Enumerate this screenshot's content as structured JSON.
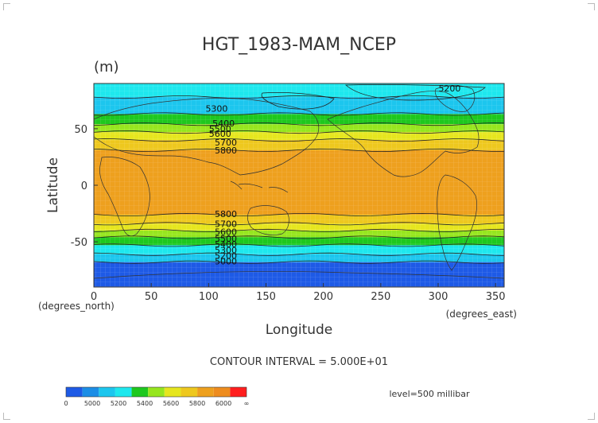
{
  "chart_data": {
    "type": "heatmap",
    "title": "HGT_1983-MAM_NCEP",
    "units": "(m)",
    "xlabel": "Longitude",
    "ylabel": "Latitude",
    "x_unit_note": "(degrees_east)",
    "y_unit_note": "(degrees_north)",
    "xlim": [
      0,
      357.5
    ],
    "ylim": [
      -90,
      90
    ],
    "x_ticks": [
      0,
      50,
      100,
      150,
      200,
      250,
      300,
      350
    ],
    "y_ticks": [
      50,
      0,
      -50
    ],
    "contour_interval_text": "CONTOUR INTERVAL = 5.000E+01",
    "level_text": "level=500 millibar",
    "colorbar": {
      "ticks": [
        "0",
        "5000",
        "5200",
        "5400",
        "5600",
        "5800",
        "6000",
        "∞"
      ],
      "colors": [
        "#1e5ae6",
        "#1c8ee6",
        "#1cc6ee",
        "#1ee8ee",
        "#1ec81e",
        "#96e61e",
        "#e6e61e",
        "#eec81e",
        "#eea01e",
        "#ee8c1e",
        "#ff1e1e"
      ]
    },
    "latitude_bands": [
      {
        "lat_from": 90,
        "lat_to": 78,
        "value": 5300,
        "color": "#1ee8ee"
      },
      {
        "lat_from": 78,
        "lat_to": 63,
        "value": 5300,
        "color": "#1cc6ee"
      },
      {
        "lat_from": 63,
        "lat_to": 54,
        "value": 5450,
        "color": "#1ec81e"
      },
      {
        "lat_from": 54,
        "lat_to": 47,
        "value": 5550,
        "color": "#96e61e"
      },
      {
        "lat_from": 47,
        "lat_to": 40,
        "value": 5650,
        "color": "#e6e61e"
      },
      {
        "lat_from": 40,
        "lat_to": 31,
        "value": 5750,
        "color": "#eec81e"
      },
      {
        "lat_from": 31,
        "lat_to": -26,
        "value": 5850,
        "color": "#eea01e"
      },
      {
        "lat_from": -26,
        "lat_to": -34,
        "value": 5750,
        "color": "#eec81e"
      },
      {
        "lat_from": -34,
        "lat_to": -40,
        "value": 5650,
        "color": "#e6e61e"
      },
      {
        "lat_from": -40,
        "lat_to": -46,
        "value": 5550,
        "color": "#96e61e"
      },
      {
        "lat_from": -46,
        "lat_to": -53,
        "value": 5450,
        "color": "#1ec81e"
      },
      {
        "lat_from": -53,
        "lat_to": -61,
        "value": 5350,
        "color": "#1ee8ee"
      },
      {
        "lat_from": -61,
        "lat_to": -68,
        "value": 5250,
        "color": "#1cc6ee"
      },
      {
        "lat_from": -68,
        "lat_to": -90,
        "value": 5100,
        "color": "#1e5ae6"
      }
    ],
    "contour_labels": [
      {
        "text": "5200",
        "lon": 310,
        "lat": 83
      },
      {
        "text": "5300",
        "lon": 107,
        "lat": 65
      },
      {
        "text": "5400",
        "lon": 113,
        "lat": 52
      },
      {
        "text": "5500",
        "lon": 110,
        "lat": 47
      },
      {
        "text": "5600",
        "lon": 110,
        "lat": 43
      },
      {
        "text": "5700",
        "lon": 115,
        "lat": 35
      },
      {
        "text": "5800",
        "lon": 115,
        "lat": 28
      },
      {
        "text": "5800",
        "lon": 115,
        "lat": -28
      },
      {
        "text": "5700",
        "lon": 115,
        "lat": -37
      },
      {
        "text": "5600",
        "lon": 115,
        "lat": -44
      },
      {
        "text": "5500",
        "lon": 115,
        "lat": -50
      },
      {
        "text": "5400",
        "lon": 115,
        "lat": -55
      },
      {
        "text": "5300",
        "lon": 115,
        "lat": -60
      },
      {
        "text": "5200",
        "lon": 115,
        "lat": -65
      },
      {
        "text": "5000",
        "lon": 115,
        "lat": -70
      }
    ]
  }
}
